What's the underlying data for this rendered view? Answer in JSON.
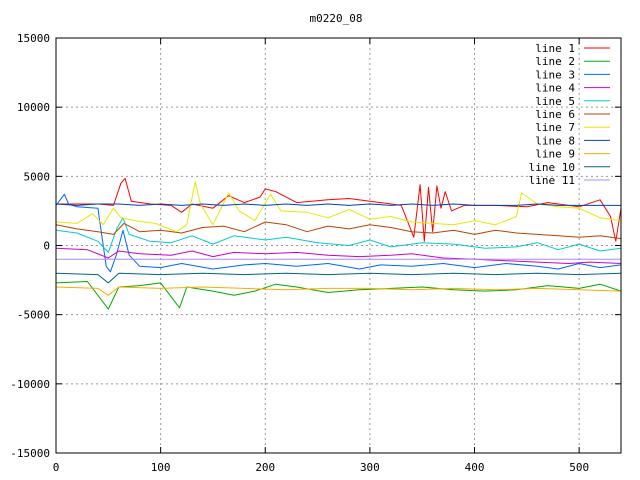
{
  "chart_data": {
    "type": "line",
    "title": "m0220_08",
    "xlabel": "",
    "ylabel": "",
    "xlim": [
      0,
      540
    ],
    "ylim": [
      -15000,
      15000
    ],
    "x_ticks": [
      0,
      100,
      200,
      300,
      400,
      500
    ],
    "y_ticks": [
      -15000,
      -10000,
      -5000,
      0,
      5000,
      10000,
      15000
    ],
    "grid": true,
    "legend_position": "top-right",
    "series": [
      {
        "name": "line 1",
        "color": "#ff0000",
        "points": [
          [
            0,
            3000
          ],
          [
            20,
            3000
          ],
          [
            40,
            3000
          ],
          [
            55,
            2900
          ],
          [
            62,
            4500
          ],
          [
            66,
            4850
          ],
          [
            72,
            3200
          ],
          [
            90,
            3000
          ],
          [
            110,
            2900
          ],
          [
            120,
            2400
          ],
          [
            130,
            3000
          ],
          [
            150,
            2700
          ],
          [
            165,
            3600
          ],
          [
            180,
            3100
          ],
          [
            195,
            3500
          ],
          [
            200,
            4100
          ],
          [
            210,
            3900
          ],
          [
            230,
            3100
          ],
          [
            260,
            3300
          ],
          [
            280,
            3400
          ],
          [
            310,
            3100
          ],
          [
            330,
            2900
          ],
          [
            342,
            600
          ],
          [
            348,
            4400
          ],
          [
            352,
            300
          ],
          [
            356,
            4200
          ],
          [
            360,
            1000
          ],
          [
            364,
            4300
          ],
          [
            368,
            2700
          ],
          [
            372,
            3900
          ],
          [
            378,
            2500
          ],
          [
            390,
            2900
          ],
          [
            420,
            2900
          ],
          [
            450,
            2800
          ],
          [
            470,
            3100
          ],
          [
            500,
            2800
          ],
          [
            520,
            3300
          ],
          [
            530,
            2100
          ],
          [
            535,
            300
          ],
          [
            540,
            2700
          ]
        ]
      },
      {
        "name": "line 2",
        "color": "#00aa00",
        "points": [
          [
            0,
            -2700
          ],
          [
            30,
            -2600
          ],
          [
            50,
            -4600
          ],
          [
            60,
            -3000
          ],
          [
            80,
            -2900
          ],
          [
            100,
            -2700
          ],
          [
            110,
            -3700
          ],
          [
            118,
            -4500
          ],
          [
            125,
            -3000
          ],
          [
            150,
            -3300
          ],
          [
            170,
            -3600
          ],
          [
            190,
            -3300
          ],
          [
            210,
            -2800
          ],
          [
            230,
            -3000
          ],
          [
            260,
            -3400
          ],
          [
            290,
            -3200
          ],
          [
            320,
            -3100
          ],
          [
            350,
            -3000
          ],
          [
            380,
            -3200
          ],
          [
            410,
            -3300
          ],
          [
            440,
            -3200
          ],
          [
            470,
            -2900
          ],
          [
            500,
            -3100
          ],
          [
            520,
            -2800
          ],
          [
            540,
            -3300
          ]
        ]
      },
      {
        "name": "line 3",
        "color": "#0066ff",
        "points": [
          [
            0,
            2900
          ],
          [
            8,
            3700
          ],
          [
            12,
            3000
          ],
          [
            20,
            2800
          ],
          [
            40,
            2700
          ],
          [
            48,
            -1500
          ],
          [
            52,
            -1900
          ],
          [
            58,
            -600
          ],
          [
            64,
            1100
          ],
          [
            70,
            -700
          ],
          [
            80,
            -1500
          ],
          [
            100,
            -1600
          ],
          [
            120,
            -1300
          ],
          [
            150,
            -1700
          ],
          [
            180,
            -1400
          ],
          [
            200,
            -1300
          ],
          [
            230,
            -1500
          ],
          [
            260,
            -1300
          ],
          [
            290,
            -1700
          ],
          [
            310,
            -1400
          ],
          [
            340,
            -1500
          ],
          [
            370,
            -1300
          ],
          [
            400,
            -1600
          ],
          [
            430,
            -1300
          ],
          [
            460,
            -1500
          ],
          [
            480,
            -1700
          ],
          [
            500,
            -1300
          ],
          [
            520,
            -1600
          ],
          [
            540,
            -1400
          ]
        ]
      },
      {
        "name": "line 4",
        "color": "#cc00cc",
        "points": [
          [
            0,
            -200
          ],
          [
            30,
            -300
          ],
          [
            50,
            -900
          ],
          [
            60,
            -400
          ],
          [
            80,
            -600
          ],
          [
            110,
            -700
          ],
          [
            130,
            -400
          ],
          [
            150,
            -800
          ],
          [
            170,
            -500
          ],
          [
            200,
            -600
          ],
          [
            230,
            -500
          ],
          [
            260,
            -700
          ],
          [
            290,
            -800
          ],
          [
            320,
            -700
          ],
          [
            340,
            -600
          ],
          [
            370,
            -900
          ],
          [
            400,
            -1000
          ],
          [
            430,
            -1100
          ],
          [
            460,
            -1200
          ],
          [
            490,
            -1300
          ],
          [
            510,
            -1200
          ],
          [
            540,
            -1300
          ]
        ]
      },
      {
        "name": "line 5",
        "color": "#00cccc",
        "points": [
          [
            0,
            1100
          ],
          [
            20,
            900
          ],
          [
            40,
            300
          ],
          [
            50,
            -500
          ],
          [
            58,
            1200
          ],
          [
            64,
            2000
          ],
          [
            70,
            800
          ],
          [
            90,
            300
          ],
          [
            110,
            200
          ],
          [
            130,
            700
          ],
          [
            150,
            100
          ],
          [
            170,
            700
          ],
          [
            200,
            400
          ],
          [
            220,
            600
          ],
          [
            250,
            200
          ],
          [
            280,
            0
          ],
          [
            300,
            400
          ],
          [
            320,
            -100
          ],
          [
            350,
            200
          ],
          [
            380,
            100
          ],
          [
            410,
            -200
          ],
          [
            440,
            -100
          ],
          [
            460,
            200
          ],
          [
            480,
            -300
          ],
          [
            500,
            100
          ],
          [
            520,
            -400
          ],
          [
            540,
            -200
          ]
        ]
      },
      {
        "name": "line 6",
        "color": "#b84400",
        "points": [
          [
            0,
            1500
          ],
          [
            20,
            1200
          ],
          [
            40,
            1000
          ],
          [
            55,
            800
          ],
          [
            65,
            1600
          ],
          [
            80,
            1000
          ],
          [
            100,
            1100
          ],
          [
            120,
            900
          ],
          [
            140,
            1300
          ],
          [
            160,
            1400
          ],
          [
            180,
            1000
          ],
          [
            200,
            1700
          ],
          [
            220,
            1500
          ],
          [
            240,
            1000
          ],
          [
            260,
            1400
          ],
          [
            280,
            1200
          ],
          [
            300,
            1500
          ],
          [
            320,
            1300
          ],
          [
            340,
            1000
          ],
          [
            360,
            900
          ],
          [
            380,
            1100
          ],
          [
            400,
            800
          ],
          [
            420,
            1100
          ],
          [
            440,
            900
          ],
          [
            460,
            800
          ],
          [
            480,
            700
          ],
          [
            500,
            600
          ],
          [
            520,
            700
          ],
          [
            540,
            500
          ]
        ]
      },
      {
        "name": "line 7",
        "color": "#e8e800",
        "points": [
          [
            0,
            1700
          ],
          [
            20,
            1600
          ],
          [
            35,
            2300
          ],
          [
            45,
            1500
          ],
          [
            55,
            2700
          ],
          [
            62,
            2000
          ],
          [
            75,
            1800
          ],
          [
            95,
            1600
          ],
          [
            115,
            1000
          ],
          [
            125,
            1500
          ],
          [
            133,
            4600
          ],
          [
            138,
            3000
          ],
          [
            150,
            1500
          ],
          [
            165,
            3800
          ],
          [
            175,
            2500
          ],
          [
            190,
            1800
          ],
          [
            205,
            3700
          ],
          [
            215,
            2500
          ],
          [
            240,
            2400
          ],
          [
            260,
            2000
          ],
          [
            280,
            2600
          ],
          [
            300,
            1900
          ],
          [
            320,
            2100
          ],
          [
            340,
            1700
          ],
          [
            360,
            1600
          ],
          [
            380,
            1500
          ],
          [
            400,
            1800
          ],
          [
            420,
            1500
          ],
          [
            440,
            2100
          ],
          [
            445,
            3800
          ],
          [
            460,
            3000
          ],
          [
            480,
            2800
          ],
          [
            500,
            2700
          ],
          [
            520,
            2000
          ],
          [
            540,
            1800
          ]
        ]
      },
      {
        "name": "line 8",
        "color": "#0044aa",
        "points": [
          [
            0,
            3000
          ],
          [
            20,
            2900
          ],
          [
            40,
            3000
          ],
          [
            60,
            3000
          ],
          [
            80,
            2900
          ],
          [
            100,
            3000
          ],
          [
            120,
            2900
          ],
          [
            140,
            3000
          ],
          [
            160,
            2900
          ],
          [
            180,
            3000
          ],
          [
            200,
            2900
          ],
          [
            220,
            3000
          ],
          [
            240,
            2900
          ],
          [
            260,
            3000
          ],
          [
            280,
            2900
          ],
          [
            300,
            3000
          ],
          [
            320,
            2900
          ],
          [
            340,
            3000
          ],
          [
            360,
            2900
          ],
          [
            380,
            3000
          ],
          [
            400,
            2900
          ],
          [
            420,
            2900
          ],
          [
            440,
            2900
          ],
          [
            460,
            3000
          ],
          [
            480,
            2900
          ],
          [
            500,
            2900
          ],
          [
            520,
            2900
          ],
          [
            540,
            2900
          ]
        ]
      },
      {
        "name": "line 9",
        "color": "#ffaa00",
        "points": [
          [
            0,
            -3000
          ],
          [
            40,
            -3100
          ],
          [
            50,
            -3600
          ],
          [
            60,
            -3000
          ],
          [
            100,
            -3100
          ],
          [
            140,
            -3000
          ],
          [
            180,
            -3100
          ],
          [
            220,
            -3200
          ],
          [
            260,
            -3100
          ],
          [
            300,
            -3100
          ],
          [
            340,
            -3200
          ],
          [
            380,
            -3100
          ],
          [
            420,
            -3200
          ],
          [
            460,
            -3100
          ],
          [
            500,
            -3200
          ],
          [
            540,
            -3300
          ]
        ]
      },
      {
        "name": "line 10",
        "color": "#006688",
        "points": [
          [
            0,
            -2000
          ],
          [
            40,
            -2100
          ],
          [
            50,
            -2700
          ],
          [
            60,
            -2000
          ],
          [
            100,
            -2100
          ],
          [
            140,
            -2000
          ],
          [
            180,
            -2100
          ],
          [
            220,
            -2000
          ],
          [
            260,
            -2100
          ],
          [
            300,
            -2000
          ],
          [
            340,
            -2100
          ],
          [
            380,
            -2000
          ],
          [
            420,
            -2100
          ],
          [
            460,
            -2000
          ],
          [
            500,
            -2100
          ],
          [
            540,
            -2000
          ]
        ]
      },
      {
        "name": "line 11",
        "color": "#aa88ff",
        "points": [
          [
            0,
            -1000
          ],
          [
            40,
            -1000
          ],
          [
            80,
            -1000
          ],
          [
            120,
            -1000
          ],
          [
            160,
            -1000
          ],
          [
            200,
            -1000
          ],
          [
            240,
            -1000
          ],
          [
            280,
            -1000
          ],
          [
            320,
            -1000
          ],
          [
            360,
            -1000
          ],
          [
            400,
            -1000
          ],
          [
            440,
            -1000
          ],
          [
            480,
            -1000
          ],
          [
            520,
            -1000
          ],
          [
            540,
            -1000
          ]
        ]
      }
    ]
  }
}
